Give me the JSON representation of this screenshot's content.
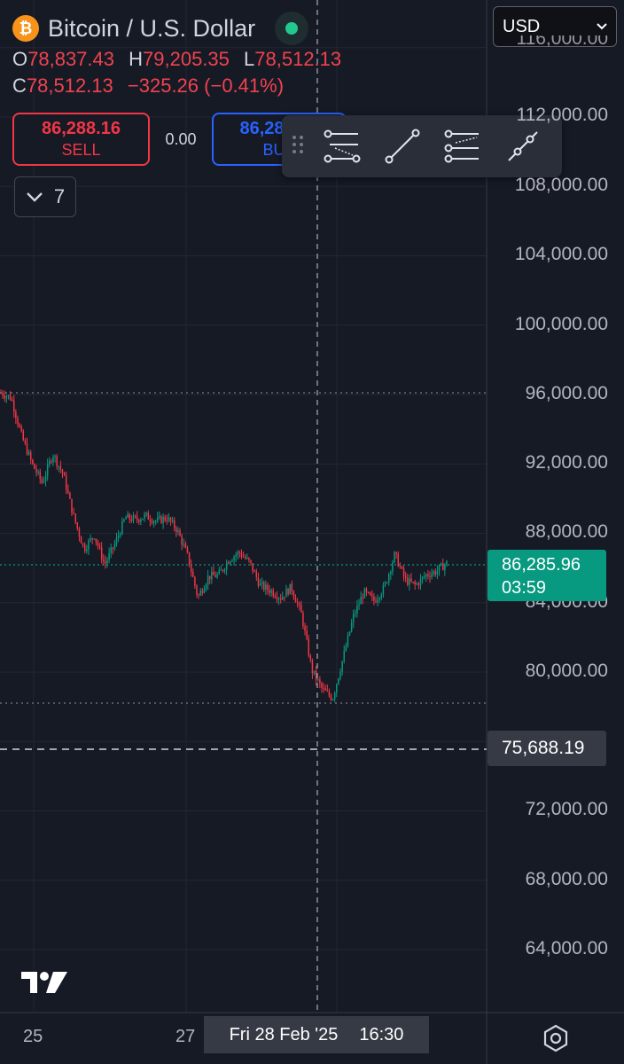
{
  "header": {
    "title": "Bitcoin / U.S. Dollar",
    "symbol_icon": "bitcoin-icon",
    "status_color": "#22c98e",
    "ohlc": {
      "open_label": "O",
      "open": "78,837.43",
      "high_label": "H",
      "high": "79,205.35",
      "low_label": "L",
      "low": "78,512.13",
      "close_label": "C",
      "close": "78,512.13",
      "change": "−325.26 (−0.41%)"
    }
  },
  "trade": {
    "sell_price": "86,288.16",
    "sell_label": "SELL",
    "spread": "0.00",
    "buy_price": "86,288.16",
    "buy_label": "BUY"
  },
  "indicators_toggle": {
    "count": "7"
  },
  "toolbar": {
    "tools": [
      "fib-retracement-icon",
      "trend-line-icon",
      "parallel-channel-icon",
      "ray-icon"
    ]
  },
  "currency": {
    "value": "USD"
  },
  "price_axis": {
    "labels": [
      "112,000.00",
      "108,000.00",
      "104,000.00",
      "100,000.00",
      "96,000.00",
      "92,000.00",
      "88,000.00",
      "84,000.00",
      "80,000.00",
      "72,000.00",
      "68,000.00",
      "64,000.00"
    ],
    "partial_top": "116,000.00"
  },
  "last_price": {
    "value": "86,285.96",
    "countdown": "03:59",
    "color": "#089981"
  },
  "crosshair": {
    "price": "75,688.19",
    "date": "Fri 28 Feb '25",
    "time": "16:30"
  },
  "time_axis": {
    "labels": [
      "25",
      "27"
    ]
  },
  "chart_data": {
    "type": "candlestick",
    "y_range": [
      62000,
      118000
    ],
    "up_color": "#089981",
    "down_color": "#f23645",
    "close_path": [
      96100,
      95800,
      93600,
      92000,
      90900,
      92600,
      91400,
      89000,
      87100,
      87900,
      86200,
      87400,
      88900,
      88800,
      89000,
      88700,
      88900,
      88200,
      86700,
      84300,
      85500,
      85600,
      86500,
      86900,
      86300,
      85000,
      84700,
      84300,
      84900,
      83300,
      80100,
      79000,
      78500,
      80800,
      83200,
      84600,
      84100,
      84900,
      86800,
      85300,
      85000,
      85600,
      85800,
      86290
    ]
  }
}
